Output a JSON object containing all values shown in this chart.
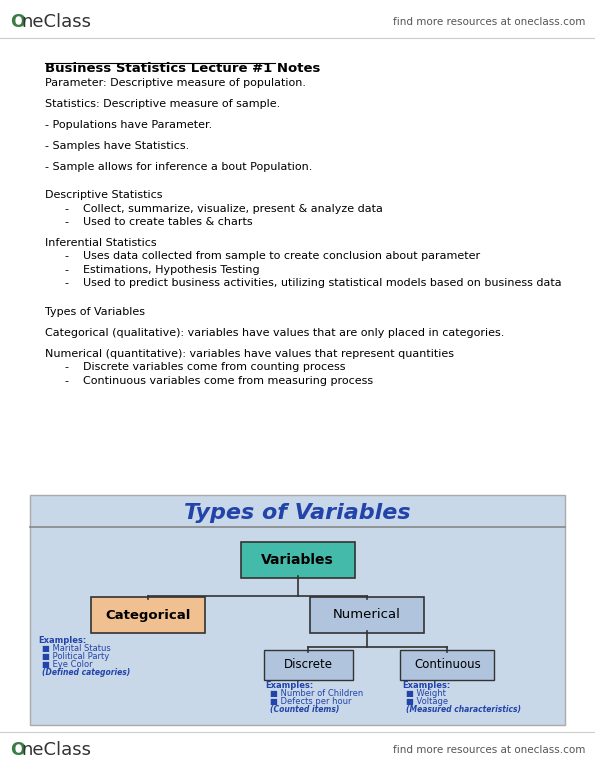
{
  "bg_color": "#f0f0f0",
  "page_bg": "#ffffff",
  "header_logo_text": "OneClass",
  "header_right_text": "find more resources at oneclass.com",
  "footer_logo_text": "OneClass",
  "footer_right_text": "find more resources at oneclass.com",
  "title": "Business Statistics Lecture #1 Notes",
  "body_lines": [
    {
      "text": "Parameter: Descriptive measure of population.",
      "indent": 0,
      "bold": false
    },
    {
      "text": "",
      "indent": 0
    },
    {
      "text": "Statistics: Descriptive measure of sample.",
      "indent": 0,
      "bold": false
    },
    {
      "text": "",
      "indent": 0
    },
    {
      "text": "- Populations have Parameter.",
      "indent": 0,
      "bold": false
    },
    {
      "text": "",
      "indent": 0
    },
    {
      "text": "- Samples have Statistics.",
      "indent": 0,
      "bold": false
    },
    {
      "text": "",
      "indent": 0
    },
    {
      "text": "- Sample allows for inference a bout Population.",
      "indent": 0,
      "bold": false
    },
    {
      "text": "",
      "indent": 0
    },
    {
      "text": "",
      "indent": 0
    },
    {
      "text": "Descriptive Statistics",
      "indent": 0,
      "bold": false
    },
    {
      "text": "-    Collect, summarize, visualize, present & analyze data",
      "indent": 1,
      "bold": false
    },
    {
      "text": "-    Used to create tables & charts",
      "indent": 1,
      "bold": false
    },
    {
      "text": "",
      "indent": 0
    },
    {
      "text": "Inferential Statistics",
      "indent": 0,
      "bold": false
    },
    {
      "text": "-    Uses data collected from sample to create conclusion about parameter",
      "indent": 1,
      "bold": false
    },
    {
      "text": "-    Estimations, Hypothesis Testing",
      "indent": 1,
      "bold": false
    },
    {
      "text": "-    Used to predict business activities, utilizing statistical models based on business data",
      "indent": 1,
      "bold": false
    },
    {
      "text": "",
      "indent": 0
    },
    {
      "text": "",
      "indent": 0
    },
    {
      "text": "Types of Variables",
      "indent": 0,
      "bold": false
    },
    {
      "text": "",
      "indent": 0
    },
    {
      "text": "Categorical (qualitative): variables have values that are only placed in categories.",
      "indent": 0,
      "bold": false
    },
    {
      "text": "",
      "indent": 0
    },
    {
      "text": "Numerical (quantitative): variables have values that represent quantities",
      "indent": 0,
      "bold": false
    },
    {
      "text": "-    Discrete variables come from counting process",
      "indent": 1,
      "bold": false
    },
    {
      "text": "-    Continuous variables come from measuring process",
      "indent": 1,
      "bold": false
    }
  ],
  "diagram": {
    "title": "Types of Variables",
    "title_color": "#2244aa",
    "bg_color": "#c8d8e8",
    "outline_color": "#888888",
    "variables_box": {
      "label": "Variables",
      "fill": "#44bbaa",
      "text_color": "#000000"
    },
    "categorical_box": {
      "label": "Categorical",
      "fill": "#f0c090",
      "text_color": "#000000"
    },
    "numerical_box": {
      "label": "Numerical",
      "fill": "#b0c4de",
      "text_color": "#000000"
    },
    "discrete_box": {
      "label": "Discrete",
      "fill": "#b0c4de",
      "text_color": "#000000"
    },
    "continuous_box": {
      "label": "Continuous",
      "fill": "#b0c4de",
      "text_color": "#000000"
    },
    "cat_examples_title": "Examples:",
    "cat_examples": [
      "Marital Status",
      "Political Party",
      "Eye Color"
    ],
    "cat_note": "(Defined categories)",
    "disc_examples_title": "Examples:",
    "disc_examples": [
      "Number of Children",
      "Defects per hour"
    ],
    "disc_note": "(Counted items)",
    "cont_examples_title": "Examples:",
    "cont_examples": [
      "Weight",
      "Voltage"
    ],
    "cont_note": "(Measured characteristics)",
    "examples_color": "#2244aa"
  }
}
